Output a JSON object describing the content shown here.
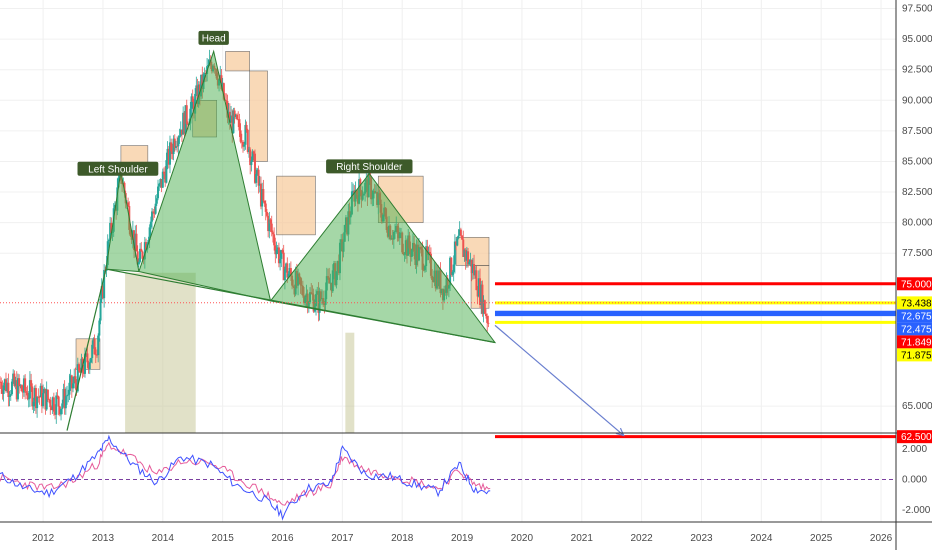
{
  "chart_data": {
    "type": "line",
    "pattern_labels": [
      {
        "text": "Left Shoulder",
        "x": 2013.25,
        "y": 84.4
      },
      {
        "text": "Head",
        "x": 2014.85,
        "y": 95.1
      },
      {
        "text": "Right Shoulder",
        "x": 2017.45,
        "y": 84.6
      }
    ],
    "x_ticks": [
      "2012",
      "2013",
      "2014",
      "2015",
      "2016",
      "2017",
      "2018",
      "2019",
      "2020",
      "2021",
      "2022",
      "2023",
      "2024",
      "2025",
      "2026"
    ],
    "y_ticks": [
      "97.500",
      "95.000",
      "92.500",
      "90.000",
      "87.500",
      "85.000",
      "82.500",
      "80.000",
      "77.500",
      "65.000"
    ],
    "osc_ticks": [
      "2.000",
      "0.000",
      "-2.000"
    ],
    "xlim": [
      2011.28,
      2026.25
    ],
    "ylim": [
      62.8,
      98.2
    ],
    "osc_ylim": [
      -2.8,
      3.0
    ],
    "price_labels": [
      {
        "text": "75.000",
        "value": 75.0,
        "color": "#ff0000",
        "text_color": "#ffffff"
      },
      {
        "text": "73.438",
        "value": 73.438,
        "color": "#ffff00",
        "text_color": "#000000"
      },
      {
        "text": "72.675",
        "value": 72.675,
        "color": "#2962ff",
        "text_color": "#ffffff"
      },
      {
        "text": "72.475",
        "value": 72.475,
        "color": "#2962ff",
        "text_color": "#ffffff"
      },
      {
        "text": "71.849",
        "value": 71.849,
        "color": "#ff0000",
        "text_color": "#ffffff"
      },
      {
        "text": "71.875",
        "value": 71.875,
        "color": "#ffff00",
        "text_color": "#000000"
      },
      {
        "text": "62.500",
        "value": 62.5,
        "color": "#ff0000",
        "text_color": "#ffffff"
      }
    ],
    "horizontal_levels": [
      {
        "value": 75.0,
        "color": "#ff0000"
      },
      {
        "value": 73.438,
        "color": "#ffff00"
      },
      {
        "value": 72.675,
        "color": "#2962ff"
      },
      {
        "value": 72.475,
        "color": "#2962ff"
      },
      {
        "value": 71.849,
        "color": "#ffff00"
      },
      {
        "value": 62.5,
        "color": "#ff0000"
      }
    ],
    "neckline": {
      "x1": 2013.05,
      "y1": 76.2,
      "x2": 2019.55,
      "y2": 70.2
    },
    "projection_arrow": {
      "x1": 2019.55,
      "y1": 71.6,
      "x2": 2021.7,
      "y2": 62.6
    },
    "current_price": 71.85,
    "pattern_polygons": [
      [
        [
          2013.05,
          76.2
        ],
        [
          2013.3,
          84.2
        ],
        [
          2013.6,
          76.0
        ]
      ],
      [
        [
          2013.6,
          76.0
        ],
        [
          2014.85,
          94.0
        ],
        [
          2015.8,
          73.6
        ]
      ],
      [
        [
          2015.8,
          73.6
        ],
        [
          2017.45,
          84.0
        ],
        [
          2019.55,
          70.2
        ]
      ]
    ],
    "ohlc_approx_closes": [
      {
        "x": 2011.28,
        "y": 67.0
      },
      {
        "x": 2011.6,
        "y": 66.4
      },
      {
        "x": 2011.95,
        "y": 65.8
      },
      {
        "x": 2012.3,
        "y": 65.2
      },
      {
        "x": 2012.6,
        "y": 67.5
      },
      {
        "x": 2012.9,
        "y": 70.2
      },
      {
        "x": 2013.05,
        "y": 77.0
      },
      {
        "x": 2013.3,
        "y": 84.0
      },
      {
        "x": 2013.6,
        "y": 76.5
      },
      {
        "x": 2013.9,
        "y": 82.0
      },
      {
        "x": 2014.2,
        "y": 87.0
      },
      {
        "x": 2014.5,
        "y": 89.5
      },
      {
        "x": 2014.85,
        "y": 93.5
      },
      {
        "x": 2015.1,
        "y": 88.5
      },
      {
        "x": 2015.4,
        "y": 87.0
      },
      {
        "x": 2015.7,
        "y": 81.0
      },
      {
        "x": 2016.0,
        "y": 76.5
      },
      {
        "x": 2016.3,
        "y": 74.5
      },
      {
        "x": 2016.6,
        "y": 73.5
      },
      {
        "x": 2016.9,
        "y": 76.0
      },
      {
        "x": 2017.2,
        "y": 82.5
      },
      {
        "x": 2017.45,
        "y": 83.0
      },
      {
        "x": 2017.8,
        "y": 79.5
      },
      {
        "x": 2018.1,
        "y": 78.0
      },
      {
        "x": 2018.4,
        "y": 77.0
      },
      {
        "x": 2018.7,
        "y": 74.5
      },
      {
        "x": 2018.95,
        "y": 78.5
      },
      {
        "x": 2019.2,
        "y": 76.0
      },
      {
        "x": 2019.45,
        "y": 71.8
      }
    ],
    "oscillator": {
      "main": [
        {
          "x": 2011.28,
          "y": 0.3
        },
        {
          "x": 2011.7,
          "y": -0.6
        },
        {
          "x": 2012.1,
          "y": -0.9
        },
        {
          "x": 2012.5,
          "y": 0.1
        },
        {
          "x": 2012.9,
          "y": 1.6
        },
        {
          "x": 2013.1,
          "y": 2.7
        },
        {
          "x": 2013.5,
          "y": 1.0
        },
        {
          "x": 2013.9,
          "y": -0.2
        },
        {
          "x": 2014.3,
          "y": 1.5
        },
        {
          "x": 2014.8,
          "y": 1.0
        },
        {
          "x": 2015.2,
          "y": -0.3
        },
        {
          "x": 2015.7,
          "y": -1.3
        },
        {
          "x": 2016.0,
          "y": -2.3
        },
        {
          "x": 2016.4,
          "y": -0.6
        },
        {
          "x": 2016.8,
          "y": -0.3
        },
        {
          "x": 2017.0,
          "y": 2.0
        },
        {
          "x": 2017.4,
          "y": 0.3
        },
        {
          "x": 2017.8,
          "y": 0.2
        },
        {
          "x": 2018.2,
          "y": -0.3
        },
        {
          "x": 2018.6,
          "y": -0.8
        },
        {
          "x": 2018.95,
          "y": 1.0
        },
        {
          "x": 2019.2,
          "y": -0.6
        },
        {
          "x": 2019.5,
          "y": -0.9
        }
      ],
      "signal": [
        {
          "x": 2011.28,
          "y": 0.1
        },
        {
          "x": 2011.7,
          "y": -0.3
        },
        {
          "x": 2012.1,
          "y": -0.6
        },
        {
          "x": 2012.5,
          "y": -0.1
        },
        {
          "x": 2012.9,
          "y": 1.0
        },
        {
          "x": 2013.1,
          "y": 2.3
        },
        {
          "x": 2013.5,
          "y": 1.4
        },
        {
          "x": 2013.9,
          "y": 0.3
        },
        {
          "x": 2014.3,
          "y": 1.2
        },
        {
          "x": 2014.8,
          "y": 1.1
        },
        {
          "x": 2015.2,
          "y": 0.2
        },
        {
          "x": 2015.7,
          "y": -0.9
        },
        {
          "x": 2016.0,
          "y": -1.7
        },
        {
          "x": 2016.4,
          "y": -0.9
        },
        {
          "x": 2016.8,
          "y": -0.4
        },
        {
          "x": 2017.0,
          "y": 1.5
        },
        {
          "x": 2017.4,
          "y": 0.6
        },
        {
          "x": 2017.8,
          "y": 0.3
        },
        {
          "x": 2018.2,
          "y": -0.1
        },
        {
          "x": 2018.6,
          "y": -0.6
        },
        {
          "x": 2018.95,
          "y": 0.6
        },
        {
          "x": 2019.2,
          "y": -0.3
        },
        {
          "x": 2019.5,
          "y": -0.7
        }
      ]
    },
    "colors": {
      "pattern_fill": "#4caf50",
      "pattern_stroke": "#2e7d32",
      "label_bg": "#3d5a2a",
      "up_candle": "#26a69a",
      "down_candle": "#ef5350",
      "supply_zone": "#f7c99a",
      "demand_zone": "#c8c89a",
      "arrow": "#6a7fcf",
      "osc_main": "#3f51ff",
      "osc_signal": "#e65c9a",
      "osc_zero": "#7b3fa0",
      "current_price": "#ff5252"
    }
  }
}
